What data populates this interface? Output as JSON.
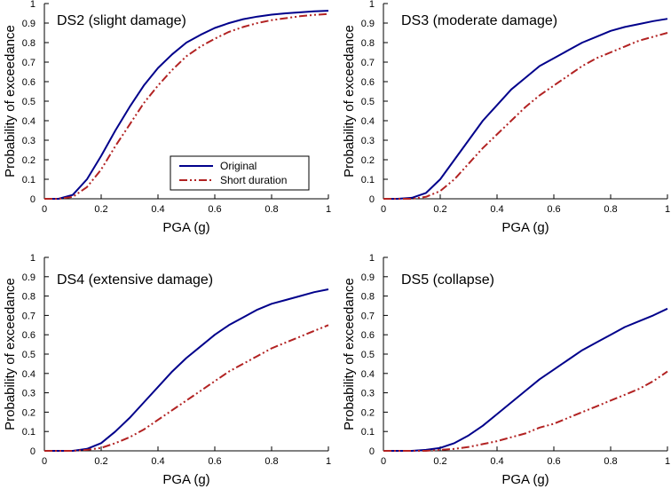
{
  "colors": {
    "original": "#00008B",
    "short": "#B22222",
    "axis": "#000000",
    "background": "#FFFFFF"
  },
  "chart_data": [
    {
      "type": "line",
      "title": "DS2 (slight damage)",
      "xlabel": "PGA (g)",
      "ylabel": "Probability of exceedance",
      "xlim": [
        0,
        1
      ],
      "ylim": [
        0,
        1
      ],
      "xticks": [
        "0",
        "0.2",
        "0.4",
        "0.6",
        "0.8",
        "1"
      ],
      "yticks": [
        "0",
        "0.1",
        "0.2",
        "0.3",
        "0.4",
        "0.5",
        "0.6",
        "0.7",
        "0.8",
        "0.9",
        "1"
      ],
      "legend": {
        "location": "center-right",
        "entries": [
          "Original",
          "Short duration"
        ]
      },
      "x": [
        0,
        0.05,
        0.1,
        0.15,
        0.2,
        0.25,
        0.3,
        0.35,
        0.4,
        0.45,
        0.5,
        0.55,
        0.6,
        0.65,
        0.7,
        0.75,
        0.8,
        0.85,
        0.9,
        0.95,
        1
      ],
      "series": [
        {
          "name": "Original",
          "style": "solid",
          "values": [
            0,
            0.0,
            0.02,
            0.1,
            0.22,
            0.35,
            0.47,
            0.58,
            0.67,
            0.74,
            0.8,
            0.84,
            0.875,
            0.9,
            0.92,
            0.933,
            0.943,
            0.95,
            0.955,
            0.96,
            0.963
          ]
        },
        {
          "name": "Short duration",
          "style": "dash-dot-dot",
          "values": [
            0,
            0.0,
            0.01,
            0.06,
            0.15,
            0.27,
            0.38,
            0.49,
            0.58,
            0.66,
            0.73,
            0.78,
            0.82,
            0.855,
            0.88,
            0.9,
            0.915,
            0.925,
            0.935,
            0.942,
            0.947
          ]
        }
      ]
    },
    {
      "type": "line",
      "title": "DS3 (moderate damage)",
      "xlabel": "PGA (g)",
      "ylabel": "Probability of exceedance",
      "xlim": [
        0,
        1
      ],
      "ylim": [
        0,
        1
      ],
      "xticks": [
        "0",
        "0.2",
        "0.4",
        "0.6",
        "0.8",
        "1"
      ],
      "yticks": [
        "0",
        "0.1",
        "0.2",
        "0.3",
        "0.4",
        "0.5",
        "0.6",
        "0.7",
        "0.8",
        "0.9",
        "1"
      ],
      "legend": null,
      "x": [
        0,
        0.05,
        0.1,
        0.15,
        0.2,
        0.25,
        0.3,
        0.35,
        0.4,
        0.45,
        0.5,
        0.55,
        0.6,
        0.65,
        0.7,
        0.75,
        0.8,
        0.85,
        0.9,
        0.95,
        1
      ],
      "series": [
        {
          "name": "Original",
          "style": "solid",
          "values": [
            0,
            0.0,
            0.005,
            0.03,
            0.1,
            0.2,
            0.3,
            0.4,
            0.48,
            0.56,
            0.62,
            0.68,
            0.72,
            0.76,
            0.8,
            0.83,
            0.86,
            0.88,
            0.895,
            0.91,
            0.922
          ]
        },
        {
          "name": "Short duration",
          "style": "dash-dot-dot",
          "values": [
            0,
            0.0,
            0.0,
            0.01,
            0.04,
            0.1,
            0.18,
            0.26,
            0.33,
            0.4,
            0.47,
            0.53,
            0.58,
            0.63,
            0.68,
            0.72,
            0.75,
            0.78,
            0.81,
            0.83,
            0.85
          ]
        }
      ]
    },
    {
      "type": "line",
      "title": "DS4 (extensive damage)",
      "xlabel": "PGA (g)",
      "ylabel": "Probability of exceedance",
      "xlim": [
        0,
        1
      ],
      "ylim": [
        0,
        1
      ],
      "xticks": [
        "0",
        "0.2",
        "0.4",
        "0.6",
        "0.8",
        "1"
      ],
      "yticks": [
        "0",
        "0.1",
        "0.2",
        "0.3",
        "0.4",
        "0.5",
        "0.6",
        "0.7",
        "0.8",
        "0.9",
        "1"
      ],
      "legend": null,
      "x": [
        0,
        0.05,
        0.1,
        0.15,
        0.2,
        0.25,
        0.3,
        0.35,
        0.4,
        0.45,
        0.5,
        0.55,
        0.6,
        0.65,
        0.7,
        0.75,
        0.8,
        0.85,
        0.9,
        0.95,
        1
      ],
      "series": [
        {
          "name": "Original",
          "style": "solid",
          "values": [
            0,
            0.0,
            0.0,
            0.01,
            0.04,
            0.1,
            0.17,
            0.25,
            0.33,
            0.41,
            0.48,
            0.54,
            0.6,
            0.65,
            0.69,
            0.73,
            0.76,
            0.78,
            0.8,
            0.82,
            0.835
          ]
        },
        {
          "name": "Short duration",
          "style": "dash-dot-dot",
          "values": [
            0,
            0.0,
            0.0,
            0.005,
            0.015,
            0.04,
            0.07,
            0.11,
            0.16,
            0.21,
            0.26,
            0.31,
            0.36,
            0.41,
            0.45,
            0.49,
            0.53,
            0.56,
            0.59,
            0.62,
            0.65
          ]
        }
      ]
    },
    {
      "type": "line",
      "title": "DS5 (collapse)",
      "xlabel": "PGA (g)",
      "ylabel": "Probability of exceedance",
      "xlim": [
        0,
        1
      ],
      "ylim": [
        0,
        1
      ],
      "xticks": [
        "0",
        "0.2",
        "0.4",
        "0.6",
        "0.8",
        "1"
      ],
      "yticks": [
        "0",
        "0.1",
        "0.2",
        "0.3",
        "0.4",
        "0.5",
        "0.6",
        "0.7",
        "0.8",
        "0.9",
        "1"
      ],
      "legend": null,
      "x": [
        0,
        0.05,
        0.1,
        0.15,
        0.2,
        0.25,
        0.3,
        0.35,
        0.4,
        0.45,
        0.5,
        0.55,
        0.6,
        0.65,
        0.7,
        0.75,
        0.8,
        0.85,
        0.9,
        0.95,
        1
      ],
      "series": [
        {
          "name": "Original",
          "style": "solid",
          "values": [
            0,
            0.0,
            0.0,
            0.005,
            0.015,
            0.04,
            0.08,
            0.13,
            0.19,
            0.25,
            0.31,
            0.37,
            0.42,
            0.47,
            0.52,
            0.56,
            0.6,
            0.64,
            0.67,
            0.7,
            0.735
          ]
        },
        {
          "name": "Short duration",
          "style": "dash-dot-dot",
          "values": [
            0,
            0.0,
            0.0,
            0.0,
            0.005,
            0.01,
            0.02,
            0.035,
            0.05,
            0.07,
            0.09,
            0.12,
            0.14,
            0.17,
            0.2,
            0.23,
            0.26,
            0.29,
            0.32,
            0.36,
            0.41
          ]
        }
      ]
    }
  ]
}
